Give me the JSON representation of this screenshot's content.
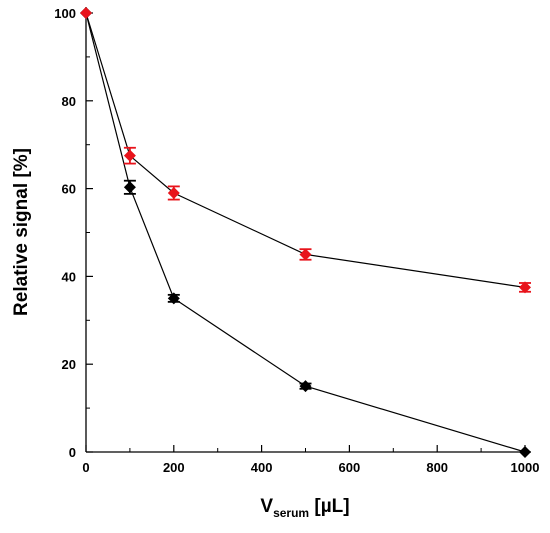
{
  "chart_data": {
    "type": "scatter",
    "title": "",
    "xlabel_main": "V",
    "xlabel_sub": "serum",
    "xlabel_unit": " [µL]",
    "ylabel": "Relative signal [%]",
    "xlim": [
      0,
      1000
    ],
    "ylim": [
      0,
      100
    ],
    "xticks": [
      0,
      200,
      400,
      600,
      800,
      1000
    ],
    "yticks": [
      0,
      20,
      40,
      60,
      80,
      100
    ],
    "xtick_labels": [
      "0",
      "200",
      "400",
      "600",
      "800",
      "1000"
    ],
    "ytick_labels": [
      "0",
      "20",
      "40",
      "60",
      "80",
      "100"
    ],
    "grid": false,
    "legend": "none",
    "marker": "diamond",
    "series": [
      {
        "color": "#000000",
        "x": [
          0,
          100,
          200,
          500,
          1000
        ],
        "y": [
          100,
          60.3,
          35,
          15,
          0
        ],
        "err": [
          0,
          1.5,
          0.8,
          0.6,
          0
        ]
      },
      {
        "color": "#e8131b",
        "x": [
          0,
          100,
          200,
          500,
          1000
        ],
        "y": [
          100,
          67.5,
          59,
          45,
          37.5
        ],
        "err": [
          0,
          1.8,
          1.5,
          1.2,
          1.0
        ]
      }
    ]
  }
}
